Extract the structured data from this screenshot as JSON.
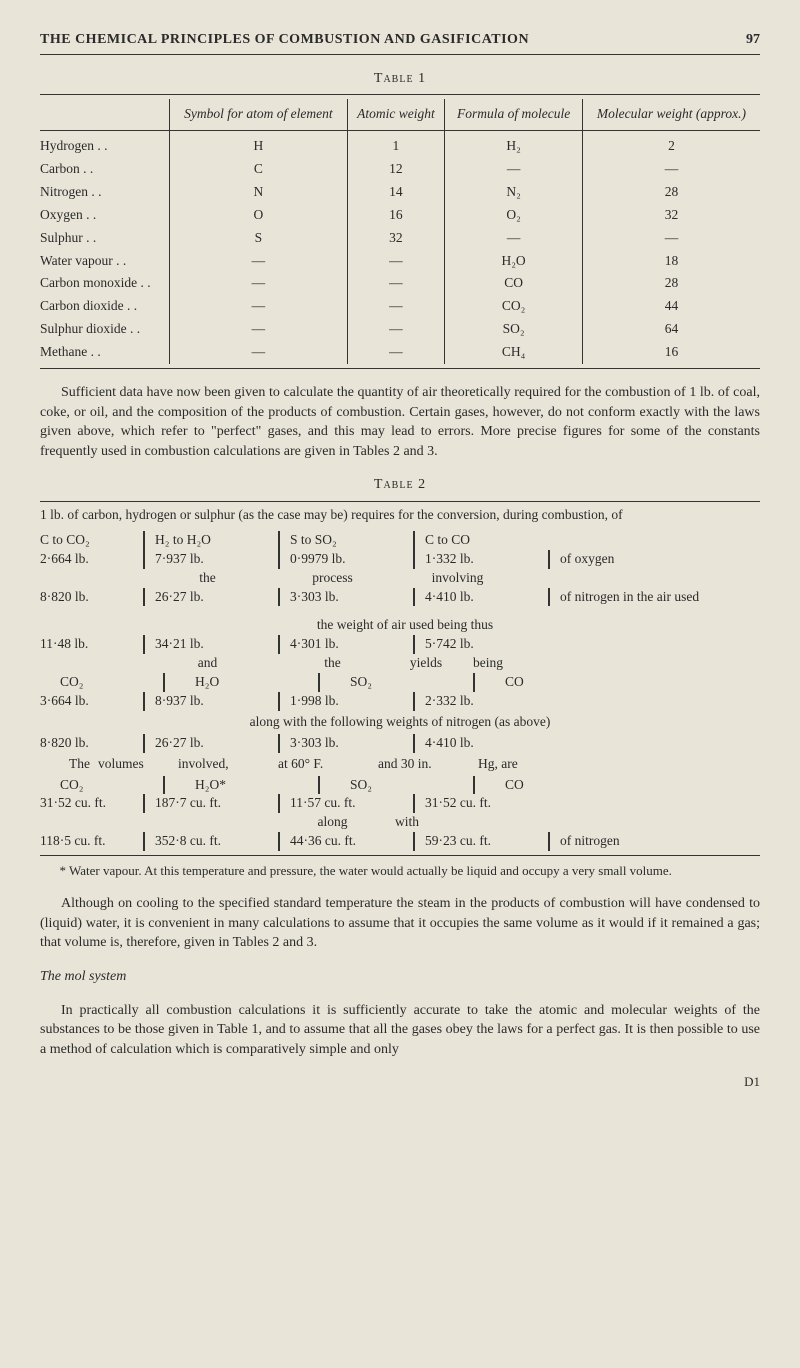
{
  "header": {
    "title": "THE CHEMICAL PRINCIPLES OF COMBUSTION AND GASIFICATION",
    "page": "97"
  },
  "table1": {
    "caption": "Table 1",
    "columns": [
      "",
      "Symbol for atom of element",
      "Atomic weight",
      "Formula of molecule",
      "Molecular weight (approx.)"
    ],
    "rows": [
      [
        "Hydrogen . .",
        "H",
        "1",
        "H₂",
        "2"
      ],
      [
        "Carbon  . .",
        "C",
        "12",
        "—",
        "—"
      ],
      [
        "Nitrogen  . .",
        "N",
        "14",
        "N₂",
        "28"
      ],
      [
        "Oxygen  . .",
        "O",
        "16",
        "O₂",
        "32"
      ],
      [
        "Sulphur  . .",
        "S",
        "32",
        "—",
        "—"
      ],
      [
        "Water vapour  . .",
        "—",
        "—",
        "H₂O",
        "18"
      ],
      [
        "Carbon monoxide  . .",
        "—",
        "—",
        "CO",
        "28"
      ],
      [
        "Carbon dioxide  . .",
        "—",
        "—",
        "CO₂",
        "44"
      ],
      [
        "Sulphur dioxide . .",
        "—",
        "—",
        "SO₂",
        "64"
      ],
      [
        "Methane  . .",
        "—",
        "—",
        "CH₄",
        "16"
      ]
    ]
  },
  "para1": "Sufficient data have now been given to calculate the quantity of air theoretically required for the combustion of 1 lb. of coal, coke, or oil, and the composition of the products of combustion. Certain gases, however, do not conform exactly with the laws given above, which refer to \"perfect\" gases, and this may lead to errors. More precise figures for some of the constants frequently used in combustion calculations are given in Tables 2 and 3.",
  "table2": {
    "caption": "Table 2",
    "intro": "1 lb. of carbon, hydrogen or sulphur (as the case may be) requires for the conversion, during combustion, of",
    "rows": {
      "r1": {
        "c1": "C to CO₂",
        "c2": "H₂ to H₂O",
        "c3": "S to SO₂",
        "c4": "C to CO",
        "c5": ""
      },
      "r2": {
        "c1": "2·664  lb.",
        "c2": "7·937 lb.",
        "c3": "0·9979 lb.",
        "c4": "1·332 lb.",
        "c5": "of oxygen"
      },
      "inter1a": "the",
      "inter1b": "process",
      "inter1c": "involving",
      "r3": {
        "c1": "8·820 lb.",
        "c2": "26·27 lb.",
        "c3": "3·303 lb.",
        "c4": "4·410 lb.",
        "c5": "of nitrogen in the air used"
      },
      "inter2": "the weight of air used being thus",
      "r4": {
        "c1": "11·48 lb.",
        "c2": "34·21 lb.",
        "c3": "4·301 lb.",
        "c4": "5·742 lb.",
        "c5": ""
      },
      "inter3a": "and",
      "inter3b": "the",
      "inter3c": "yields",
      "inter3d": "being",
      "r5": {
        "c1": "CO₂",
        "c2": "H₂O",
        "c3": "SO₂",
        "c4": "CO",
        "c5": ""
      },
      "r6": {
        "c1": "3·664 lb.",
        "c2": "8·937 lb.",
        "c3": "1·998 lb.",
        "c4": "2·332 lb.",
        "c5": ""
      },
      "inter4": "along with the following weights of nitrogen (as above)",
      "r7": {
        "c1": "8·820 lb.",
        "c2": "26·27 lb.",
        "c3": "3·303 lb.",
        "c4": "4·410 lb.",
        "c5": ""
      },
      "inter5a": "The",
      "inter5b": "volumes",
      "inter5c": "involved,",
      "inter5d": "at   60° F.",
      "inter5e": "and   30 in.",
      "inter5f": "Hg,   are",
      "r8": {
        "c1": "CO₂",
        "c2": "H₂O*",
        "c3": "SO₂",
        "c4": "CO",
        "c5": ""
      },
      "r9": {
        "c1": "31·52 cu. ft.",
        "c2": "187·7  cu. ft.",
        "c3": "11·57 cu. ft.",
        "c4": "31·52 cu. ft.",
        "c5": ""
      },
      "inter6a": "along",
      "inter6b": "with",
      "r10": {
        "c1": "118·5 cu. ft.",
        "c2": "352·8  cu. ft.",
        "c3": "44·36 cu. ft.",
        "c4": "59·23 cu. ft.",
        "c5": "of nitrogen"
      }
    },
    "footnote": "* Water vapour. At this temperature and pressure, the water would actually be liquid and occupy a very small volume."
  },
  "para2": "Although on cooling to the specified standard temperature the steam in the products of combustion will have condensed to (liquid) water, it is convenient in many calculations to assume that it occupies the same volume as it would if it remained a gas; that volume is, therefore, given in Tables 2 and 3.",
  "section": "The mol system",
  "para3": "In practically all combustion calculations it is sufficiently accurate to take the atomic and molecular weights of the substances to be those given in Table 1, and to assume that all the gases obey the laws for a perfect gas. It is then possible to use a method of calculation which is comparatively simple and only",
  "sig": "D1"
}
